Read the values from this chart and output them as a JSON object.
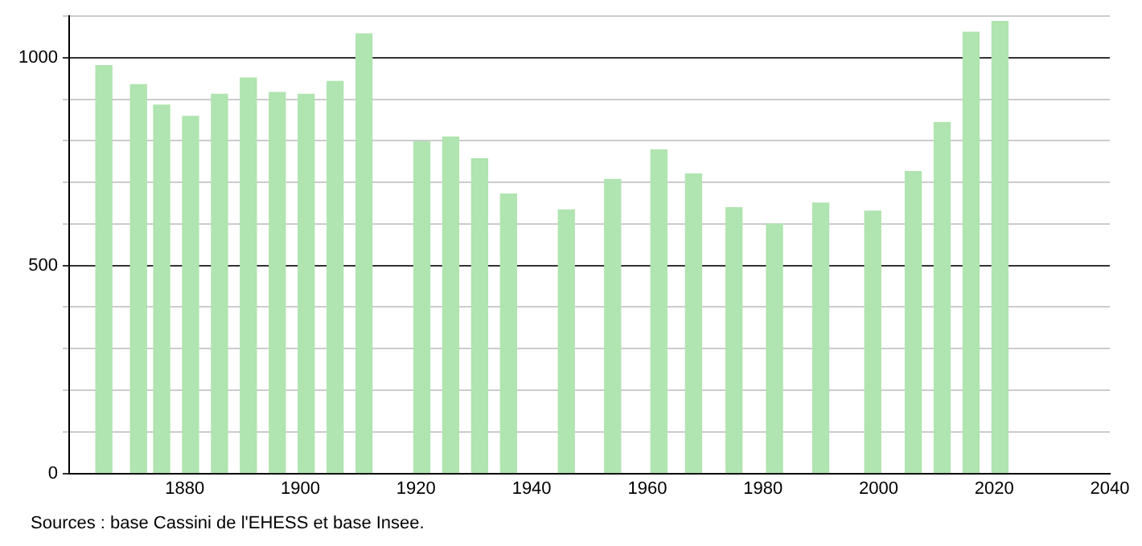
{
  "chart_data": {
    "type": "bar",
    "x": [
      1866,
      1872,
      1876,
      1881,
      1886,
      1891,
      1896,
      1901,
      1906,
      1911,
      1921,
      1926,
      1931,
      1936,
      1946,
      1954,
      1962,
      1968,
      1975,
      1982,
      1990,
      1999,
      2006,
      2011,
      2016,
      2021
    ],
    "values": [
      981,
      935,
      886,
      859,
      912,
      951,
      916,
      912,
      943,
      1057,
      798,
      809,
      757,
      672,
      634,
      707,
      778,
      720,
      639,
      600,
      650,
      631,
      726,
      844,
      1061,
      1087
    ],
    "color": "#b0e4b0",
    "xlim": [
      1860,
      2040
    ],
    "xticks": [
      1880,
      1900,
      1920,
      1940,
      1960,
      1980,
      2000,
      2020,
      2040
    ],
    "ylim": [
      0,
      1100
    ],
    "yticks": [
      0,
      {
        "value": 100,
        "label": null
      },
      {
        "value": 200,
        "label": null
      },
      {
        "value": 300,
        "label": null
      },
      {
        "value": 400,
        "label": null
      },
      500,
      {
        "value": 600,
        "label": null
      },
      {
        "value": 700,
        "label": null
      },
      {
        "value": 800,
        "label": null
      },
      {
        "value": 900,
        "label": null
      },
      1000,
      {
        "value": 1100,
        "label": null
      }
    ],
    "grid": "y",
    "annotations": [
      "Sources : base Cassini de l'EHESS et base Insee."
    ]
  }
}
